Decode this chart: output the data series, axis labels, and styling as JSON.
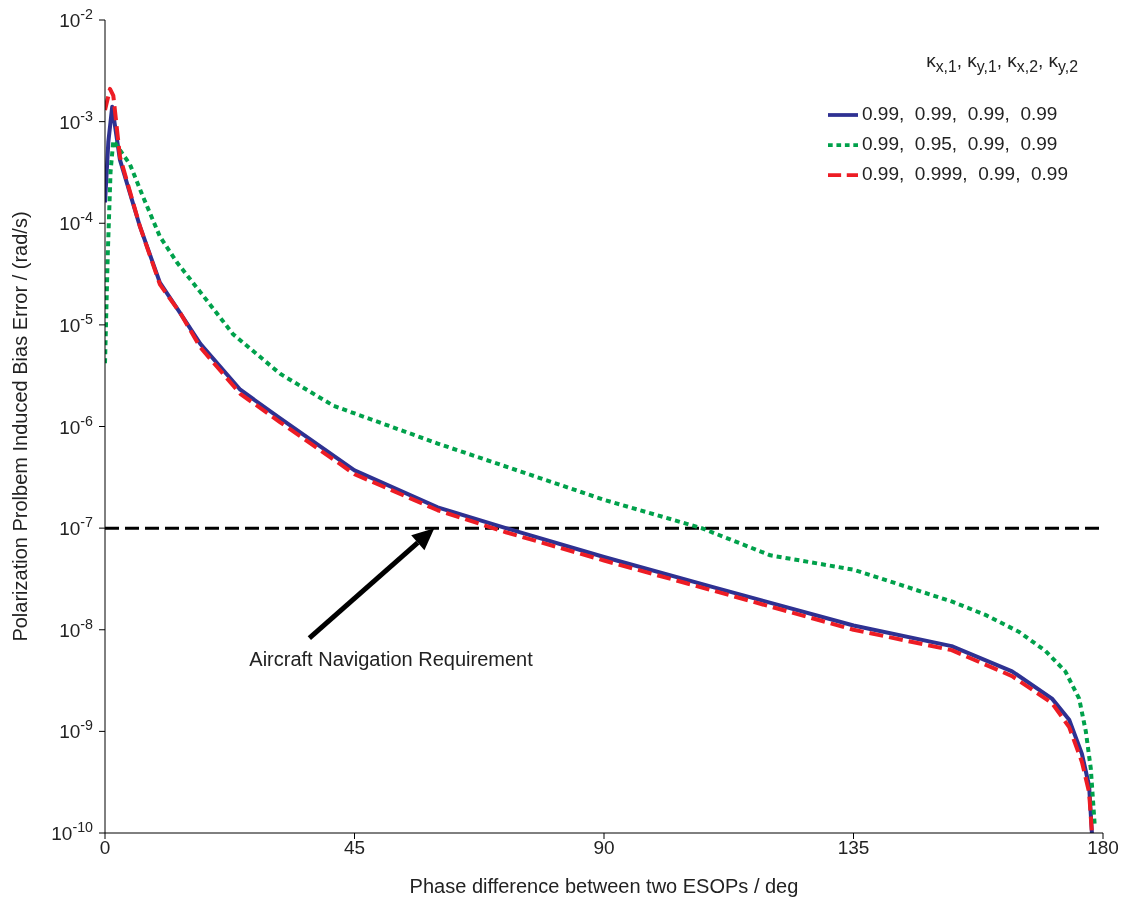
{
  "chart_data": {
    "type": "line",
    "xlabel": "Phase difference between two ESOPs / deg",
    "ylabel": "Polarization Prolbem Induced Bias Error / (rad/s)",
    "legend_title": "κ$_{x,1}$,  κ$_{y,1}$,  κ$_{x,2}$,  κ$_{y,2}$",
    "log": "y",
    "grid": false,
    "legend": "top right",
    "marker": "none",
    "xlim": [
      0,
      180
    ],
    "xticks": [
      0,
      45,
      90,
      135,
      180
    ],
    "ylim": [
      1e-10,
      0.01
    ],
    "yticks": [
      {
        "value": 1e-10,
        "label": "10$^{-10}$"
      },
      {
        "value": 1e-09,
        "label": "10$^{-9}$"
      },
      {
        "value": 1e-08,
        "label": "10$^{-8}$"
      },
      {
        "value": 1e-07,
        "label": "10$^{-7}$"
      },
      {
        "value": 1e-06,
        "label": "10$^{-6}$"
      },
      {
        "value": 1e-05,
        "label": "10$^{-5}$"
      },
      {
        "value": 0.0001,
        "label": "10$^{-4}$"
      },
      {
        "value": 0.001,
        "label": "10$^{-3}$"
      },
      {
        "value": 0.01,
        "label": "10$^{-2}$"
      }
    ],
    "series": [
      {
        "name": "0.99,  0.99,  0.99,  0.99",
        "color": "#2e3192",
        "line_style": "solid",
        "x": [
          0,
          0.6,
          1.3,
          2.7,
          6.3,
          9.9,
          13.6,
          17.2,
          24.4,
          31.6,
          45,
          60,
          72.3,
          90,
          110,
          135,
          152.7,
          163.6,
          170.8,
          173.9,
          176.2,
          177.5,
          178
        ],
        "values": [
          0.00016,
          0.00063,
          0.0014,
          0.00042,
          9.3e-05,
          2.6e-05,
          1.3e-05,
          6.5e-06,
          2.3e-06,
          1.2e-06,
          3.7e-07,
          1.6e-07,
          1e-07,
          5.2e-08,
          2.6e-08,
          1.1e-08,
          6.9e-09,
          3.9e-09,
          2.1e-09,
          1.3e-09,
          6e-10,
          2.9e-10,
          1e-10
        ]
      },
      {
        "name": "0.99,  0.95,  0.99,  0.99",
        "color": "#00a14b",
        "line_style": "dotted",
        "x": [
          0,
          0.5,
          1,
          1.5,
          4.5,
          6.9,
          9.9,
          13,
          17.2,
          23.1,
          31.6,
          41.2,
          60,
          75,
          90,
          107.6,
          120,
          135,
          152.7,
          158.8,
          164.9,
          169.6,
          173.2,
          175.7,
          176.9,
          177.8,
          178.5
        ],
        "values": [
          4.2e-06,
          5e-05,
          0.00032,
          0.00065,
          0.00038,
          0.00018,
          7.4e-05,
          4.1e-05,
          2.1e-05,
          8.1e-06,
          3.3e-06,
          1.6e-06,
          6.8e-07,
          3.6e-07,
          1.9e-07,
          1e-07,
          5.4e-08,
          3.9e-08,
          1.9e-08,
          1.4e-08,
          9.5e-09,
          6.2e-09,
          3.9e-09,
          2.1e-09,
          1e-09,
          4.3e-10,
          1.2e-10
        ]
      },
      {
        "name": "0.99,  0.999,  0.99,  0.99",
        "color": "#ed1c24",
        "line_style": "dashed",
        "x": [
          0,
          0.9,
          1.5,
          2.7,
          6.3,
          9.9,
          13.6,
          17.2,
          24.4,
          31.6,
          45,
          60,
          72.3,
          90,
          110,
          135,
          152.7,
          163.6,
          170.8,
          173.9,
          176.2,
          177.5,
          178
        ],
        "values": [
          0.0013,
          0.0021,
          0.0018,
          0.00045,
          9.3e-05,
          2.5e-05,
          1.3e-05,
          6e-06,
          2.1e-06,
          1.1e-06,
          3.4e-07,
          1.5e-07,
          9.1e-08,
          4.8e-08,
          2.4e-08,
          1e-08,
          6.3e-09,
          3.5e-09,
          1.9e-09,
          1.1e-09,
          5e-10,
          2.5e-10,
          1e-10
        ]
      }
    ],
    "ref_lines": [
      {
        "axis": "y",
        "value": 1e-07,
        "color": "#000000",
        "line_style": "dashed"
      }
    ],
    "annotations": [
      "Aircraft Navigation Requirement"
    ]
  }
}
